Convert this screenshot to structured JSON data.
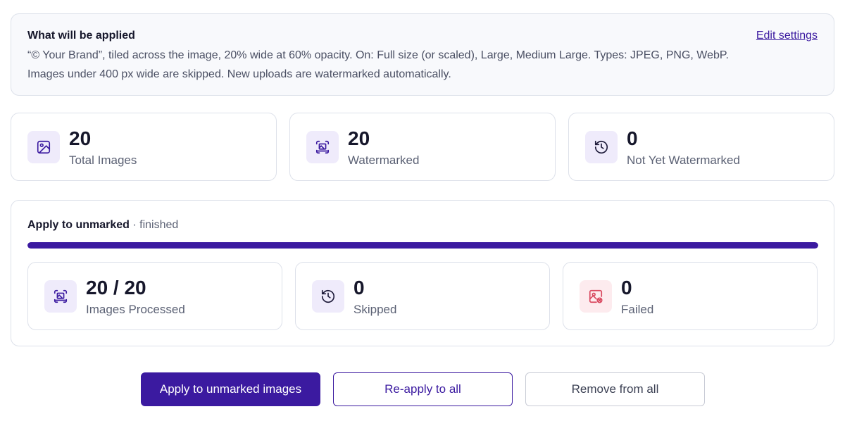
{
  "summary": {
    "title": "What will be applied",
    "text": "“© Your Brand”, tiled across the image, 20% wide at 60% opacity. On: Full size (or scaled), Large, Medium Large. Types: JPEG, PNG, WebP. Images under 400 px wide are skipped. New uploads are watermarked automatically.",
    "edit_link": "Edit settings"
  },
  "stats": [
    {
      "value": "20",
      "label": "Total Images",
      "icon": "image-icon"
    },
    {
      "value": "20",
      "label": "Watermarked",
      "icon": "watermark-scan-icon"
    },
    {
      "value": "0",
      "label": "Not Yet Watermarked",
      "icon": "history-clock-icon"
    }
  ],
  "progress": {
    "title": "Apply to unmarked",
    "status": " · finished",
    "percent": 100,
    "cards": [
      {
        "value": "20 / 20",
        "label": "Images Processed",
        "icon": "watermark-scan-icon"
      },
      {
        "value": "0",
        "label": "Skipped",
        "icon": "history-clock-icon"
      },
      {
        "value": "0",
        "label": "Failed",
        "icon": "image-error-icon"
      }
    ]
  },
  "actions": {
    "apply_unmarked": "Apply to unmarked images",
    "reapply_all": "Re-apply to all",
    "remove_all": "Remove from all"
  },
  "colors": {
    "accent": "#3b1aa0",
    "icon_bg": "#efebfb",
    "error_icon_bg": "#fdebee",
    "error": "#d9485f"
  }
}
